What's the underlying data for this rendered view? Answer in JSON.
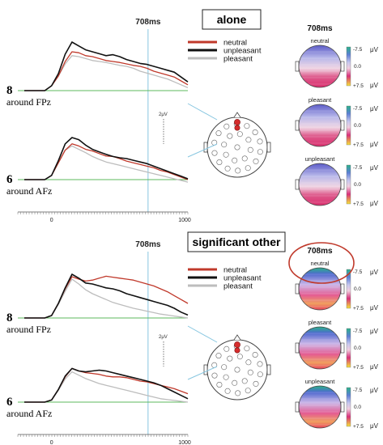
{
  "panels": [
    {
      "title": "alone",
      "marker_label": "708ms",
      "legend": [
        "neutral",
        "unpleasant",
        "pleasant"
      ],
      "channels": [
        {
          "num": "8",
          "name": "around FPz"
        },
        {
          "num": "6",
          "name": "around AFz"
        }
      ],
      "scale_label": "2μV",
      "x_ticks": [
        "0",
        "1000"
      ],
      "maps_title": "708ms",
      "maps": [
        {
          "label": "neutral"
        },
        {
          "label": "pleasant"
        },
        {
          "label": "unpleasant"
        }
      ],
      "colorbar": {
        "top": "-7.5",
        "mid": "0.0",
        "bottom": "+7.5",
        "unit": "μV"
      }
    },
    {
      "title": "significant other",
      "marker_label": "708ms",
      "legend": [
        "neutral",
        "unpleasant",
        "pleasant"
      ],
      "channels": [
        {
          "num": "8",
          "name": "around FPz"
        },
        {
          "num": "6",
          "name": "around AFz"
        }
      ],
      "scale_label": "2μV",
      "x_ticks": [
        "0",
        "1000"
      ],
      "maps_title": "708ms",
      "maps": [
        {
          "label": "neutral"
        },
        {
          "label": "pleasant"
        },
        {
          "label": "unpleasant"
        }
      ],
      "colorbar": {
        "top": "-7.5",
        "mid": "0.0",
        "bottom": "+7.5",
        "unit": "μV"
      }
    }
  ],
  "colors": {
    "neutral": "#c0392b",
    "unpleasant": "#111111",
    "pleasant": "#bdbdbd",
    "baseline": "#5cb85c",
    "marker": "#87c6e0",
    "highlight_circle": "#c0392b"
  },
  "chart_data": [
    {
      "type": "line",
      "x_range": [
        -200,
        1000
      ],
      "x": [
        -200,
        -150,
        -100,
        -50,
        0,
        50,
        100,
        150,
        200,
        250,
        300,
        350,
        400,
        450,
        500,
        550,
        600,
        650,
        700,
        750,
        800,
        850,
        900,
        950,
        1000
      ],
      "series": [
        {
          "name": "neutral",
          "values": [
            0,
            0,
            0,
            0,
            0.1,
            0.3,
            0.6,
            0.8,
            0.78,
            0.72,
            0.7,
            0.66,
            0.62,
            0.6,
            0.58,
            0.55,
            0.52,
            0.5,
            0.46,
            0.4,
            0.36,
            0.32,
            0.28,
            0.2,
            0.12
          ]
        },
        {
          "name": "unpleasant",
          "values": [
            0,
            0,
            0,
            0,
            0.1,
            0.35,
            0.75,
            1.0,
            0.92,
            0.84,
            0.8,
            0.76,
            0.72,
            0.74,
            0.7,
            0.64,
            0.6,
            0.56,
            0.54,
            0.5,
            0.46,
            0.42,
            0.38,
            0.28,
            0.18
          ]
        },
        {
          "name": "pleasant",
          "values": [
            0,
            0,
            0,
            0,
            0.1,
            0.3,
            0.55,
            0.72,
            0.7,
            0.66,
            0.62,
            0.6,
            0.58,
            0.55,
            0.52,
            0.5,
            0.46,
            0.4,
            0.36,
            0.32,
            0.28,
            0.24,
            0.18,
            0.12,
            0.06
          ]
        }
      ]
    },
    {
      "type": "line",
      "x_range": [
        -200,
        1000
      ],
      "x": [
        -200,
        -150,
        -100,
        -50,
        0,
        50,
        100,
        150,
        200,
        250,
        300,
        350,
        400,
        450,
        500,
        550,
        600,
        650,
        700,
        750,
        800,
        850,
        900,
        950,
        1000
      ],
      "series": [
        {
          "name": "neutral",
          "values": [
            0,
            0,
            0,
            0,
            0.1,
            0.4,
            0.7,
            0.85,
            0.8,
            0.72,
            0.68,
            0.62,
            0.56,
            0.55,
            0.5,
            0.44,
            0.4,
            0.36,
            0.32,
            0.28,
            0.22,
            0.18,
            0.12,
            0.06,
            0.0
          ]
        },
        {
          "name": "unpleasant",
          "values": [
            0,
            0,
            0,
            0,
            0.1,
            0.45,
            0.85,
            1.0,
            0.95,
            0.82,
            0.72,
            0.66,
            0.6,
            0.55,
            0.52,
            0.5,
            0.46,
            0.42,
            0.38,
            0.32,
            0.26,
            0.2,
            0.14,
            0.08,
            0.02
          ]
        },
        {
          "name": "pleasant",
          "values": [
            0,
            0,
            0,
            0,
            0.1,
            0.4,
            0.7,
            0.8,
            0.72,
            0.64,
            0.55,
            0.48,
            0.42,
            0.38,
            0.34,
            0.3,
            0.26,
            0.22,
            0.18,
            0.14,
            0.1,
            0.06,
            0.02,
            -0.02,
            -0.06
          ]
        }
      ]
    },
    {
      "type": "line",
      "x_range": [
        -200,
        1000
      ],
      "x": [
        -200,
        -150,
        -100,
        -50,
        0,
        50,
        100,
        150,
        200,
        250,
        300,
        350,
        400,
        450,
        500,
        550,
        600,
        650,
        700,
        750,
        800,
        850,
        900,
        950,
        1000
      ],
      "series": [
        {
          "name": "neutral",
          "values": [
            0,
            0,
            0,
            0,
            0.05,
            0.3,
            0.6,
            0.85,
            0.8,
            0.76,
            0.78,
            0.82,
            0.86,
            0.84,
            0.82,
            0.8,
            0.78,
            0.74,
            0.7,
            0.66,
            0.6,
            0.54,
            0.46,
            0.38,
            0.3
          ]
        },
        {
          "name": "unpleasant",
          "values": [
            0,
            0,
            0,
            0,
            0.05,
            0.3,
            0.62,
            0.9,
            0.82,
            0.72,
            0.7,
            0.66,
            0.62,
            0.6,
            0.56,
            0.5,
            0.46,
            0.42,
            0.38,
            0.34,
            0.3,
            0.26,
            0.2,
            0.12,
            0.06
          ]
        },
        {
          "name": "pleasant",
          "values": [
            0,
            0,
            0,
            0,
            0.05,
            0.28,
            0.55,
            0.8,
            0.7,
            0.58,
            0.5,
            0.44,
            0.38,
            0.32,
            0.28,
            0.24,
            0.2,
            0.17,
            0.14,
            0.11,
            0.08,
            0.06,
            0.04,
            0.02,
            0.0
          ]
        }
      ]
    },
    {
      "type": "line",
      "x_range": [
        -200,
        1000
      ],
      "x": [
        -200,
        -150,
        -100,
        -50,
        0,
        50,
        100,
        150,
        200,
        250,
        300,
        350,
        400,
        450,
        500,
        550,
        600,
        650,
        700,
        750,
        800,
        850,
        900,
        950,
        1000
      ],
      "series": [
        {
          "name": "neutral",
          "values": [
            0,
            0,
            0,
            0,
            0.05,
            0.3,
            0.6,
            0.8,
            0.74,
            0.7,
            0.68,
            0.66,
            0.62,
            0.6,
            0.6,
            0.58,
            0.54,
            0.5,
            0.48,
            0.44,
            0.4,
            0.36,
            0.32,
            0.26,
            0.2
          ]
        },
        {
          "name": "unpleasant",
          "values": [
            0,
            0,
            0,
            0,
            0.05,
            0.3,
            0.62,
            0.8,
            0.74,
            0.72,
            0.74,
            0.76,
            0.74,
            0.7,
            0.66,
            0.62,
            0.58,
            0.54,
            0.5,
            0.46,
            0.4,
            0.32,
            0.24,
            0.16,
            0.08
          ]
        },
        {
          "name": "pleasant",
          "values": [
            0,
            0,
            0,
            0,
            0.05,
            0.28,
            0.55,
            0.72,
            0.64,
            0.56,
            0.5,
            0.44,
            0.4,
            0.36,
            0.32,
            0.28,
            0.24,
            0.2,
            0.16,
            0.12,
            0.08,
            0.06,
            0.04,
            0.02,
            0.0
          ]
        }
      ]
    }
  ]
}
